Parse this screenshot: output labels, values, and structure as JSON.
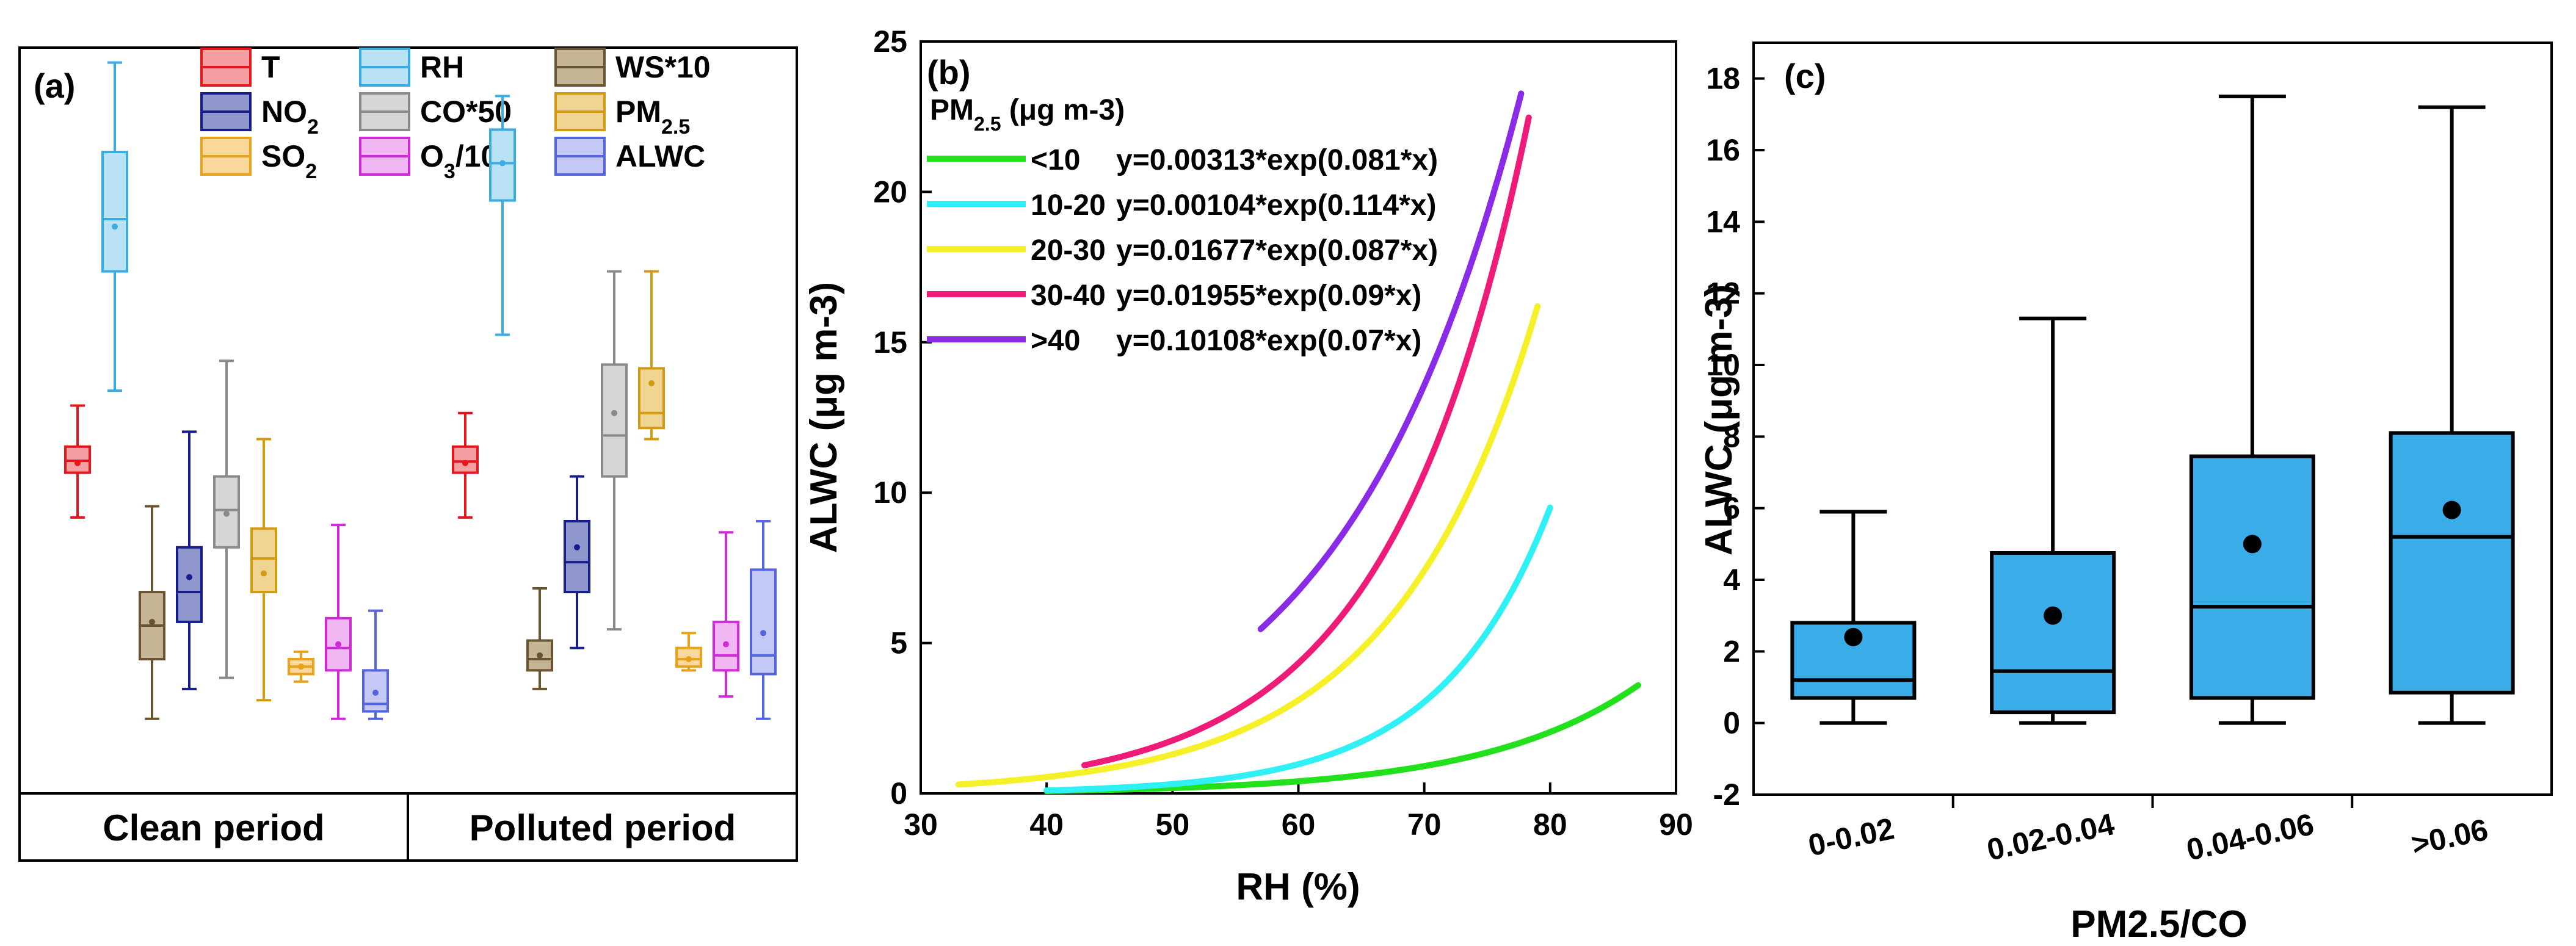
{
  "panel_a": {
    "label": "(a)",
    "legend": [
      {
        "label": "T",
        "color": "#e8151e",
        "fill": "#f4a0a3"
      },
      {
        "label": "RH",
        "color": "#3aace1",
        "fill": "#b9e2f5"
      },
      {
        "label": "WS*10",
        "color": "#6b5430",
        "fill": "#c4b596"
      },
      {
        "label": "NO2",
        "color": "#161e8c",
        "fill": "#8f97cc"
      },
      {
        "label": "CO*50",
        "color": "#8a8a8a",
        "fill": "#d6d6d6"
      },
      {
        "label": "PM2.5",
        "color": "#d49a12",
        "fill": "#f0d592"
      },
      {
        "label": "SO2",
        "color": "#e9a21c",
        "fill": "#fad89b"
      },
      {
        "label": "O3/10",
        "color": "#d12ad8",
        "fill": "#f1b7f3"
      },
      {
        "label": "ALWC",
        "color": "#5564e0",
        "fill": "#c3c8f4"
      }
    ],
    "categories": [
      "Clean period",
      "Polluted period"
    ]
  },
  "chart_data": [
    {
      "type": "box",
      "title": "(a)",
      "categories": [
        "Clean period",
        "Polluted period"
      ],
      "note": "unitless relative scale; values estimated as normalized vertical position 0 (bottom) to 100 (top)",
      "series": [
        {
          "name": "T",
          "boxes": [
            {
              "min": 37.0,
              "q1": 43.0,
              "median": 44.6,
              "q3": 46.5,
              "max": 52.0,
              "mean": 44.3
            },
            {
              "min": 37.0,
              "q1": 43.0,
              "median": 44.5,
              "q3": 46.5,
              "max": 51.0,
              "mean": 44.3
            }
          ]
        },
        {
          "name": "RH",
          "boxes": [
            {
              "min": 54.0,
              "q1": 70.0,
              "median": 77.0,
              "q3": 86.0,
              "max": 98.0,
              "mean": 76.0
            },
            {
              "min": 61.5,
              "q1": 79.5,
              "median": 84.5,
              "q3": 89.0,
              "max": 93.5,
              "mean": 84.5
            }
          ]
        },
        {
          "name": "WS*10",
          "boxes": [
            {
              "min": 10.0,
              "q1": 18.0,
              "median": 22.5,
              "q3": 27.0,
              "max": 38.5,
              "mean": 23.0
            },
            {
              "min": 14.0,
              "q1": 16.5,
              "median": 18.0,
              "q3": 20.5,
              "max": 27.5,
              "mean": 18.5
            }
          ]
        },
        {
          "name": "NO2",
          "boxes": [
            {
              "min": 14.0,
              "q1": 23.0,
              "median": 27.0,
              "q3": 33.0,
              "max": 48.5,
              "mean": 29.0
            },
            {
              "min": 19.5,
              "q1": 27.0,
              "median": 31.0,
              "q3": 36.5,
              "max": 42.5,
              "mean": 33.0
            }
          ]
        },
        {
          "name": "CO*50",
          "boxes": [
            {
              "min": 15.5,
              "q1": 33.0,
              "median": 38.0,
              "q3": 42.5,
              "max": 58.0,
              "mean": 37.5
            },
            {
              "min": 22.0,
              "q1": 42.5,
              "median": 48.0,
              "q3": 57.5,
              "max": 70.0,
              "mean": 51.0
            }
          ]
        },
        {
          "name": "PM2.5",
          "boxes": [
            {
              "min": 12.5,
              "q1": 27.0,
              "median": 31.5,
              "q3": 35.5,
              "max": 47.5,
              "mean": 29.5
            },
            {
              "min": 47.5,
              "q1": 49.0,
              "median": 51.0,
              "q3": 57.0,
              "max": 70.0,
              "mean": 55.0
            }
          ]
        },
        {
          "name": "SO2",
          "boxes": [
            {
              "min": 15.0,
              "q1": 16.0,
              "median": 17.0,
              "q3": 18.0,
              "max": 19.0,
              "mean": 17.0
            },
            {
              "min": 16.5,
              "q1": 17.0,
              "median": 18.0,
              "q3": 19.5,
              "max": 21.5,
              "mean": 18.0
            }
          ]
        },
        {
          "name": "O3/10",
          "boxes": [
            {
              "min": 10.0,
              "q1": 16.5,
              "median": 19.5,
              "q3": 23.5,
              "max": 36.0,
              "mean": 20.0
            },
            {
              "min": 13.0,
              "q1": 16.5,
              "median": 18.5,
              "q3": 23.0,
              "max": 35.0,
              "mean": 20.0
            }
          ]
        },
        {
          "name": "ALWC",
          "boxes": [
            {
              "min": 10.0,
              "q1": 11.0,
              "median": 12.0,
              "q3": 16.5,
              "max": 24.5,
              "mean": 13.5
            },
            {
              "min": 10.0,
              "q1": 16.0,
              "median": 18.5,
              "q3": 30.0,
              "max": 36.5,
              "mean": 21.5
            }
          ]
        }
      ]
    },
    {
      "type": "line",
      "title": "(b)",
      "xlabel": "RH (%)",
      "ylabel": "ALWC (μg m-3)",
      "xlim": [
        30,
        90
      ],
      "ylim": [
        0,
        25
      ],
      "xticks": [
        30,
        40,
        50,
        60,
        70,
        80,
        90
      ],
      "yticks": [
        0,
        5,
        10,
        15,
        20,
        25
      ],
      "legend_title": "PM2.5 (μg m-3)",
      "series": [
        {
          "name": "<10",
          "equation": "y=0.00313*exp(0.081*x)",
          "a": 0.00313,
          "b": 0.081,
          "x_range": [
            40,
            87
          ],
          "color": "#22e01c"
        },
        {
          "name": "10-20",
          "equation": "y=0.00104*exp(0.114*x)",
          "a": 0.00104,
          "b": 0.114,
          "x_range": [
            40,
            80
          ],
          "color": "#2ff0f5"
        },
        {
          "name": "20-30",
          "equation": "y=0.01677*exp(0.087*x)",
          "a": 0.01677,
          "b": 0.087,
          "x_range": [
            33,
            79
          ],
          "color": "#f5f028"
        },
        {
          "name": "30-40",
          "equation": "y=0.01955*exp(0.09*x)",
          "a": 0.01955,
          "b": 0.09,
          "x_range": [
            43,
            78.3
          ],
          "color": "#ee1c78"
        },
        {
          "name": ">40",
          "equation": "y=0.10108*exp(0.07*x)",
          "a": 0.10108,
          "b": 0.07,
          "x_range": [
            57,
            77.7
          ],
          "color": "#8a2be8"
        }
      ]
    },
    {
      "type": "box",
      "title": "(c)",
      "xlabel": "PM2.5/CO",
      "ylabel": "ALWC (μg m-3)",
      "ylim": [
        -2,
        19
      ],
      "yticks": [
        -2,
        0,
        2,
        4,
        6,
        8,
        10,
        12,
        14,
        16,
        18
      ],
      "categories": [
        "0-0.02",
        "0.02-0.04",
        "0.04-0.06",
        ">0.06"
      ],
      "fill": "#3aace8",
      "boxes": [
        {
          "min": 0.0,
          "q1": 0.7,
          "median": 1.2,
          "q3": 2.8,
          "max": 5.9,
          "mean": 2.4
        },
        {
          "min": 0.0,
          "q1": 0.3,
          "median": 1.45,
          "q3": 4.75,
          "max": 11.3,
          "mean": 3.0
        },
        {
          "min": 0.0,
          "q1": 0.7,
          "median": 3.25,
          "q3": 7.45,
          "max": 17.5,
          "mean": 5.0
        },
        {
          "min": 0.0,
          "q1": 0.85,
          "median": 5.2,
          "q3": 8.1,
          "max": 17.2,
          "mean": 5.95
        }
      ]
    }
  ]
}
